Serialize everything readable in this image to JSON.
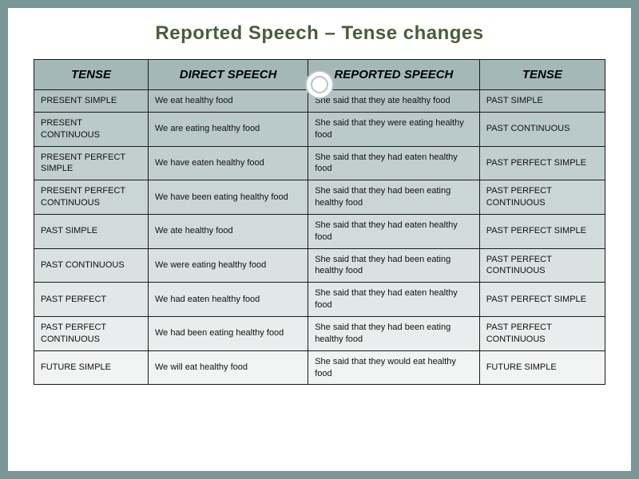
{
  "title": "Reported Speech – Tense changes",
  "table": {
    "columns": [
      "TENSE",
      "DIRECT SPEECH",
      "REPORTED SPEECH",
      "TENSE"
    ],
    "col_widths_pct": [
      20,
      28,
      30,
      22
    ],
    "header_bg": "#a4b8b8",
    "border_color": "#1a1a1a",
    "row_bg_gradient": [
      "#b3c3c3",
      "#bac9c9",
      "#c2cfcf",
      "#cad5d5",
      "#d2dbdb",
      "#dae1e1",
      "#e2e7e7",
      "#eaeded",
      "#f2f3f3"
    ],
    "header_fontsize": 15,
    "cell_fontsize": 11,
    "rows": [
      [
        "PRESENT SIMPLE",
        "We eat healthy food",
        "She said that they ate healthy food",
        "PAST SIMPLE"
      ],
      [
        "PRESENT CONTINUOUS",
        "We are eating healthy food",
        "She said that they were eating healthy food",
        "PAST CONTINUOUS"
      ],
      [
        "PRESENT PERFECT SIMPLE",
        "We have eaten healthy food",
        "She said that they had eaten healthy food",
        "PAST PERFECT SIMPLE"
      ],
      [
        "PRESENT PERFECT CONTINUOUS",
        "We have been eating healthy food",
        "She said that they had been eating  healthy food",
        "PAST PERFECT CONTINUOUS"
      ],
      [
        "PAST SIMPLE",
        "We ate healthy food",
        "She said that they had eaten healthy food",
        "PAST PERFECT SIMPLE"
      ],
      [
        "PAST CONTINUOUS",
        "We were eating healthy food",
        "She said that they had been eating healthy food",
        "PAST PERFECT CONTINUOUS"
      ],
      [
        "PAST PERFECT",
        "We had eaten healthy food",
        "She said that they had eaten healthy food",
        "PAST PERFECT SIMPLE"
      ],
      [
        "PAST PERFECT CONTINUOUS",
        "We had been eating healthy food",
        "She said that they had been eating  healthy food",
        "PAST PERFECT CONTINUOUS"
      ],
      [
        "FUTURE SIMPLE",
        "We will eat healthy food",
        "She said that they would eat healthy food",
        "FUTURE SIMPLE"
      ]
    ]
  },
  "styling": {
    "slide_bg": "#ffffff",
    "page_bg": "#7a9595",
    "title_color": "#4a5d3a",
    "title_fontsize": 24,
    "ornament_color": "#b8c5c5"
  }
}
